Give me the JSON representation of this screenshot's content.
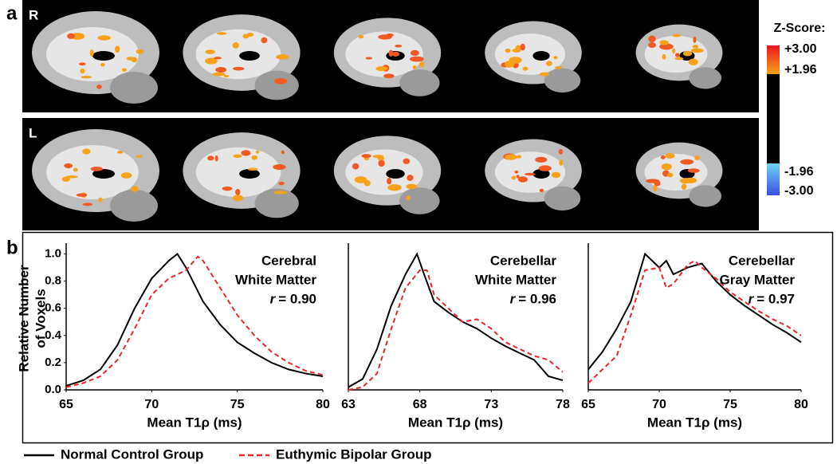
{
  "panel_a": {
    "label": "a",
    "rows": [
      "R",
      "L"
    ],
    "colorbar": {
      "title": "Z-Score:",
      "labels": [
        "+3.00",
        "+1.96",
        "-1.96",
        "-3.00"
      ]
    }
  },
  "panel_b": {
    "label": "b"
  },
  "chart_data": [
    {
      "type": "line",
      "annotation": [
        "Cerebral",
        "White Matter"
      ],
      "r_symbol": "r",
      "r_text": "= 0.90",
      "ylabel": [
        "Relative Number",
        "of Voxels"
      ],
      "xlabel": "Mean T1ρ (ms)",
      "xlim": [
        65,
        80
      ],
      "xticks": [
        65,
        70,
        75,
        80
      ],
      "ylim": [
        0,
        1.05
      ],
      "yticks": [
        {
          "value": 0,
          "label": "0.0"
        },
        0.2,
        0.4,
        0.6,
        0.8,
        {
          "value": 1,
          "label": "1.0"
        }
      ],
      "series": [
        {
          "name": "Normal Control Group",
          "color": "#000000",
          "dash": false,
          "x": [
            65,
            66,
            67,
            68,
            69,
            70,
            71,
            71.5,
            72,
            73,
            74,
            75,
            76,
            77,
            78,
            79,
            80
          ],
          "values": [
            0.03,
            0.07,
            0.15,
            0.33,
            0.6,
            0.82,
            0.95,
            1.0,
            0.9,
            0.65,
            0.48,
            0.35,
            0.27,
            0.2,
            0.15,
            0.12,
            0.1
          ]
        },
        {
          "name": "Euthymic Bipolar Group",
          "color": "#e8262b",
          "dash": true,
          "x": [
            65,
            66,
            67,
            68,
            69,
            70,
            71,
            72,
            72.7,
            73,
            74,
            75,
            76,
            77,
            78,
            79,
            80
          ],
          "values": [
            0.02,
            0.05,
            0.1,
            0.22,
            0.45,
            0.7,
            0.82,
            0.88,
            0.98,
            0.95,
            0.75,
            0.55,
            0.4,
            0.28,
            0.2,
            0.14,
            0.11
          ]
        }
      ]
    },
    {
      "type": "line",
      "annotation": [
        "Cerebellar",
        "White Matter"
      ],
      "r_symbol": "r",
      "r_text": "= 0.96",
      "xlabel": "Mean T1ρ (ms)",
      "xlim": [
        63,
        78
      ],
      "xticks": [
        63,
        68,
        73,
        78
      ],
      "ylim": [
        0,
        1.05
      ],
      "series": [
        {
          "name": "Normal Control Group",
          "color": "#000000",
          "dash": false,
          "x": [
            63,
            64,
            65,
            66,
            67,
            67.8,
            68.3,
            69,
            70,
            71,
            72,
            73,
            74,
            75,
            76,
            77,
            78
          ],
          "values": [
            0.02,
            0.08,
            0.3,
            0.62,
            0.85,
            1.0,
            0.85,
            0.65,
            0.57,
            0.5,
            0.45,
            0.38,
            0.32,
            0.27,
            0.22,
            0.1,
            0.07
          ]
        },
        {
          "name": "Euthymic Bipolar Group",
          "color": "#e8262b",
          "dash": true,
          "x": [
            63,
            64,
            65,
            66,
            67,
            68,
            68.5,
            69,
            70,
            71,
            72,
            73,
            74,
            75,
            76,
            77,
            78
          ],
          "values": [
            0,
            0.02,
            0.12,
            0.45,
            0.75,
            0.88,
            0.88,
            0.7,
            0.6,
            0.5,
            0.52,
            0.45,
            0.35,
            0.3,
            0.25,
            0.22,
            0.13
          ]
        }
      ]
    },
    {
      "type": "line",
      "annotation": [
        "Cerebellar",
        "Gray Matter"
      ],
      "r_symbol": "r",
      "r_text": "= 0.97",
      "xlabel": "Mean T1ρ (ms)",
      "xlim": [
        65,
        80
      ],
      "xticks": [
        65,
        70,
        75,
        80
      ],
      "ylim": [
        0,
        1.05
      ],
      "series": [
        {
          "name": "Normal Control Group",
          "color": "#000000",
          "dash": false,
          "x": [
            65,
            66,
            67,
            68,
            69,
            69.5,
            70,
            70.5,
            71,
            72,
            73,
            74,
            75,
            76,
            77,
            78,
            79,
            80
          ],
          "values": [
            0.15,
            0.28,
            0.45,
            0.65,
            1.0,
            0.95,
            0.9,
            0.95,
            0.85,
            0.9,
            0.93,
            0.8,
            0.7,
            0.62,
            0.55,
            0.48,
            0.42,
            0.35
          ]
        },
        {
          "name": "Euthymic Bipolar Group",
          "color": "#e8262b",
          "dash": true,
          "x": [
            65,
            66,
            67,
            68,
            69,
            70,
            70.5,
            71,
            72,
            72.5,
            73,
            74,
            75,
            76,
            77,
            78,
            79,
            80
          ],
          "values": [
            0.05,
            0.15,
            0.25,
            0.55,
            0.88,
            0.9,
            0.75,
            0.78,
            0.92,
            0.95,
            0.9,
            0.82,
            0.72,
            0.65,
            0.58,
            0.52,
            0.47,
            0.4
          ]
        }
      ]
    }
  ]
}
